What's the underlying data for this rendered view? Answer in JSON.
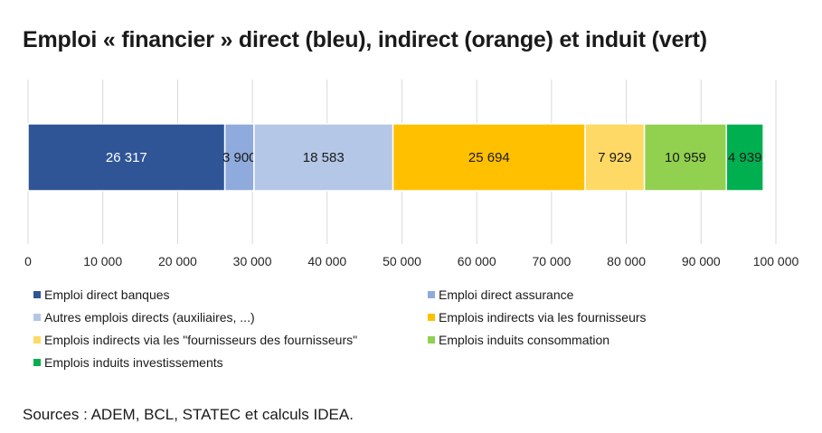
{
  "title": "Emploi « financier » direct (bleu), indirect (orange) et induit (vert)",
  "source": "Sources : ADEM, BCL, STATEC et calculs IDEA.",
  "chart_data": {
    "type": "bar",
    "orientation": "horizontal",
    "stacked": true,
    "title": "Emploi « financier » direct (bleu), indirect (orange) et induit (vert)",
    "xlim": [
      0,
      100000
    ],
    "x_ticks": [
      "0",
      "10 000",
      "20 000",
      "30 000",
      "40 000",
      "50 000",
      "60 000",
      "70 000",
      "80 000",
      "90 000",
      "100 000"
    ],
    "grid": true,
    "legend_position": "bottom",
    "series": [
      {
        "name": "Emploi direct banques",
        "value": 26317,
        "label": "26 317",
        "color": "#2f5597"
      },
      {
        "name": "Emploi direct assurance",
        "value": 3900,
        "label": "3 900",
        "color": "#8faadc"
      },
      {
        "name": "Autres emplois directs (auxiliaires, ...)",
        "value": 18583,
        "label": "18 583",
        "color": "#b4c7e7"
      },
      {
        "name": "Emplois indirects via les fournisseurs",
        "value": 25694,
        "label": "25 694",
        "color": "#ffc000"
      },
      {
        "name": "Emplois indirects via les \"fournisseurs des fournisseurs\"",
        "value": 7929,
        "label": "7 929",
        "color": "#ffd966"
      },
      {
        "name": "Emplois induits consommation",
        "value": 10959,
        "label": "10 959",
        "color": "#92d050"
      },
      {
        "name": "Emplois induits investissements",
        "value": 4939,
        "label": "4 939",
        "color": "#00b050"
      }
    ]
  }
}
